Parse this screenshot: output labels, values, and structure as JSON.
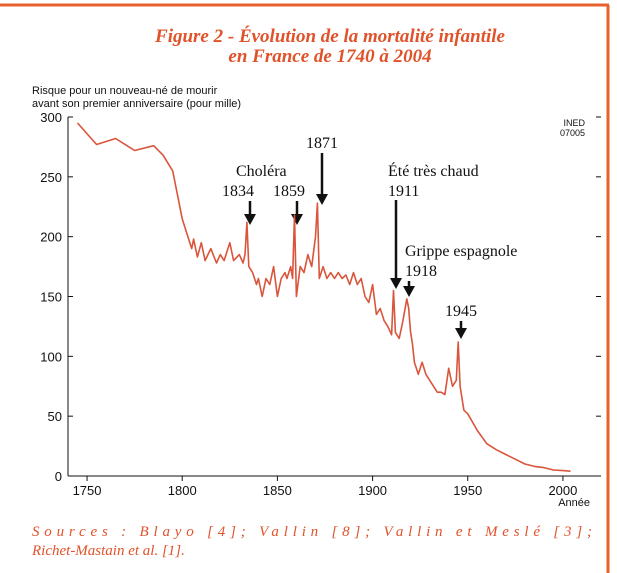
{
  "chart_data": {
    "type": "line",
    "title": [
      "Figure 2 - Évolution de la mortalité infantile",
      "en France de 1740 à 2004"
    ],
    "y_label": [
      "Risque pour un nouveau-né de mourir",
      "avant son premier anniversaire (pour mille)"
    ],
    "x_label": "Année",
    "badge": [
      "INED",
      "07005"
    ],
    "annotations": [
      "Choléra",
      "1834",
      "1859",
      "1871",
      "Été très chaud",
      "1911",
      "Grippe espagnole",
      "1918",
      "1945"
    ],
    "sources": [
      "Sources : Blayo [4]; Vallin [8]; Vallin et Meslé [3];",
      "Richet-Mastain et al. [1]."
    ],
    "color": "#d9553b",
    "x": [
      1745,
      1755,
      1765,
      1775,
      1785,
      1790,
      1795,
      1800,
      1803,
      1805,
      1806,
      1808,
      1810,
      1812,
      1815,
      1818,
      1820,
      1822,
      1825,
      1827,
      1830,
      1832,
      1833,
      1834,
      1835,
      1837,
      1839,
      1840,
      1842,
      1844,
      1846,
      1848,
      1850,
      1852,
      1854,
      1855,
      1857,
      1858,
      1859,
      1860,
      1862,
      1864,
      1866,
      1868,
      1870,
      1871,
      1872,
      1874,
      1876,
      1878,
      1880,
      1882,
      1884,
      1886,
      1888,
      1890,
      1892,
      1894,
      1896,
      1898,
      1900,
      1902,
      1904,
      1906,
      1908,
      1910,
      1911,
      1912,
      1914,
      1916,
      1918,
      1919,
      1920,
      1921,
      1922,
      1924,
      1926,
      1928,
      1930,
      1932,
      1934,
      1936,
      1938,
      1940,
      1942,
      1944,
      1945,
      1946,
      1948,
      1950,
      1955,
      1960,
      1965,
      1970,
      1975,
      1980,
      1985,
      1990,
      1995,
      2000,
      2004
    ],
    "values": [
      295,
      277,
      282,
      272,
      276,
      268,
      255,
      215,
      200,
      190,
      198,
      183,
      195,
      180,
      190,
      178,
      185,
      180,
      195,
      180,
      185,
      178,
      185,
      212,
      175,
      170,
      160,
      165,
      150,
      165,
      160,
      175,
      150,
      165,
      170,
      165,
      175,
      165,
      218,
      150,
      175,
      170,
      185,
      175,
      200,
      228,
      165,
      175,
      165,
      170,
      165,
      170,
      165,
      168,
      160,
      170,
      160,
      165,
      150,
      145,
      160,
      135,
      140,
      130,
      125,
      118,
      155,
      120,
      115,
      130,
      148,
      140,
      120,
      110,
      95,
      85,
      95,
      85,
      80,
      75,
      70,
      70,
      68,
      90,
      75,
      80,
      112,
      75,
      55,
      52,
      38,
      27,
      22,
      18,
      14,
      10,
      8,
      7,
      5,
      4.5,
      4
    ],
    "xlim": [
      1740,
      2020
    ],
    "ylim": [
      0,
      300
    ],
    "xticks": [
      1750,
      1800,
      1850,
      1900,
      1950,
      2000
    ],
    "yticks": [
      0,
      50,
      100,
      150,
      200,
      250,
      300
    ]
  }
}
